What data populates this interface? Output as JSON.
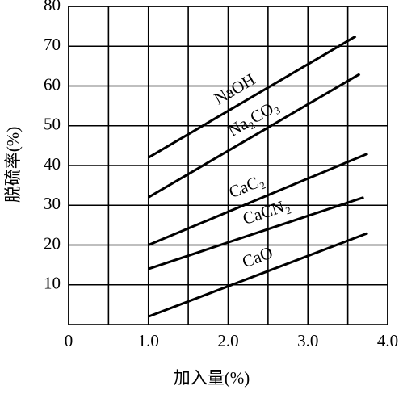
{
  "chart_data": {
    "type": "line",
    "x_label": "加入量(%)",
    "y_label": "脱硫率(%)",
    "xlim": [
      0,
      4.0
    ],
    "ylim": [
      0,
      80
    ],
    "xticks": [
      0,
      {
        "value": 1.0,
        "label": "1.0"
      },
      {
        "value": 2.0,
        "label": "2.0"
      },
      {
        "value": 3.0,
        "label": "3.0"
      },
      {
        "value": 4.0,
        "label": "4.0"
      }
    ],
    "yticks": [
      10,
      20,
      30,
      40,
      50,
      60,
      70,
      80
    ],
    "grid": true,
    "series": [
      {
        "name": "NaOH",
        "color": "#000000",
        "x": [
          1.0,
          3.6
        ],
        "values": [
          42,
          72.5
        ]
      },
      {
        "name": "Na₂CO₃",
        "color": "#000000",
        "x": [
          1.0,
          3.65
        ],
        "values": [
          32,
          63
        ]
      },
      {
        "name": "CaC₂",
        "color": "#000000",
        "x": [
          1.0,
          3.75
        ],
        "values": [
          20,
          43
        ]
      },
      {
        "name": "CaCN₂",
        "color": "#000000",
        "x": [
          1.0,
          3.7
        ],
        "values": [
          14,
          32
        ]
      },
      {
        "name": "CaO",
        "color": "#000000",
        "x": [
          1.0,
          3.75
        ],
        "values": [
          2,
          23
        ]
      }
    ]
  }
}
